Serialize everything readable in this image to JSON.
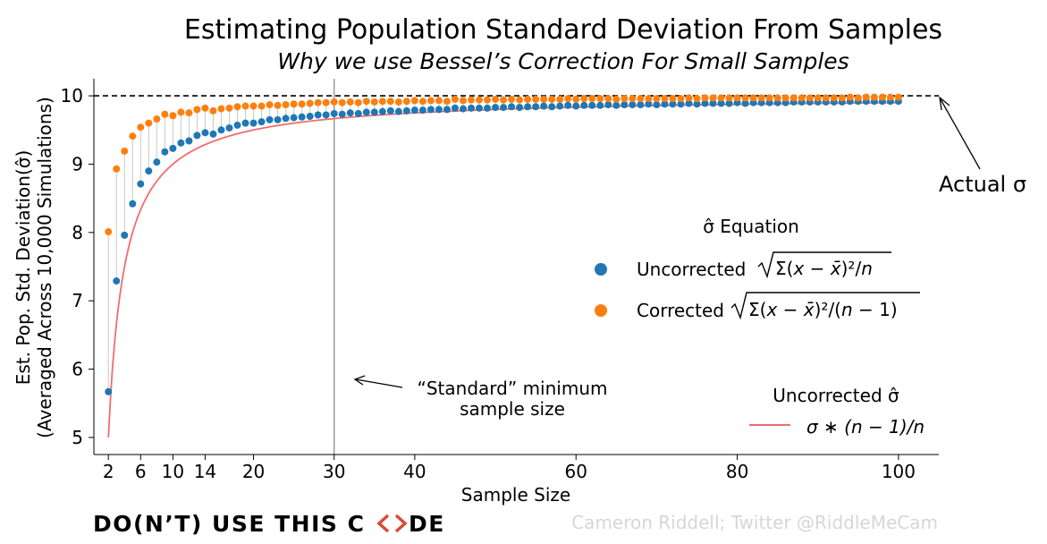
{
  "chart_data": {
    "type": "scatter",
    "title": "Estimating Population Standard Deviation From Samples",
    "subtitle": "Why we use Bessel’s Correction For Small Samples",
    "xlabel": "Sample Size",
    "ylabel_lines": [
      "Est. Pop. Std. Deviation(σ̂)",
      "(Averaged Across 10,000 Simulations)"
    ],
    "xlim": [
      0.2,
      105
    ],
    "ylim": [
      4.75,
      10.25
    ],
    "x_ticks": [
      2,
      6,
      10,
      14,
      20,
      30,
      40,
      60,
      80,
      100
    ],
    "y_ticks": [
      5,
      6,
      7,
      8,
      9,
      10
    ],
    "true_sigma": 10,
    "reference_x": 30,
    "legend": {
      "title": "σ̂ Equation",
      "uncorrected_label": "Uncorrected",
      "corrected_label": "Corrected",
      "curve_title": "Uncorrected σ̂",
      "curve_label": "σ * (n − 1)/n"
    },
    "series": [
      {
        "name": "Uncorrected",
        "color": "#1f77b4",
        "x": [
          2,
          3,
          4,
          5,
          6,
          7,
          8,
          9,
          10,
          11,
          12,
          13,
          14,
          15,
          16,
          17,
          18,
          19,
          20,
          21,
          22,
          23,
          24,
          25,
          26,
          27,
          28,
          29,
          30,
          31,
          32,
          33,
          34,
          35,
          36,
          37,
          38,
          39,
          40,
          41,
          42,
          43,
          44,
          45,
          46,
          47,
          48,
          49,
          50,
          51,
          52,
          53,
          54,
          55,
          56,
          57,
          58,
          59,
          60,
          61,
          62,
          63,
          64,
          65,
          66,
          67,
          68,
          69,
          70,
          71,
          72,
          73,
          74,
          75,
          76,
          77,
          78,
          79,
          80,
          81,
          82,
          83,
          84,
          85,
          86,
          87,
          88,
          89,
          90,
          91,
          92,
          93,
          94,
          95,
          96,
          97,
          98,
          99,
          100
        ],
        "values": [
          5.67,
          7.29,
          7.96,
          8.42,
          8.71,
          8.9,
          9.03,
          9.18,
          9.23,
          9.31,
          9.34,
          9.42,
          9.46,
          9.44,
          9.5,
          9.53,
          9.57,
          9.6,
          9.6,
          9.62,
          9.65,
          9.65,
          9.67,
          9.68,
          9.69,
          9.7,
          9.72,
          9.72,
          9.74,
          9.73,
          9.75,
          9.74,
          9.76,
          9.76,
          9.77,
          9.78,
          9.77,
          9.78,
          9.79,
          9.79,
          9.8,
          9.8,
          9.8,
          9.82,
          9.81,
          9.82,
          9.82,
          9.82,
          9.83,
          9.83,
          9.84,
          9.83,
          9.84,
          9.84,
          9.85,
          9.84,
          9.85,
          9.86,
          9.85,
          9.86,
          9.86,
          9.86,
          9.87,
          9.86,
          9.87,
          9.87,
          9.87,
          9.88,
          9.87,
          9.88,
          9.88,
          9.88,
          9.89,
          9.88,
          9.89,
          9.89,
          9.89,
          9.89,
          9.9,
          9.89,
          9.9,
          9.9,
          9.9,
          9.9,
          9.9,
          9.91,
          9.91,
          9.91,
          9.91,
          9.91,
          9.91,
          9.91,
          9.92,
          9.92,
          9.92,
          9.92,
          9.92,
          9.92,
          9.92
        ]
      },
      {
        "name": "Corrected",
        "color": "#ff7f0e",
        "x": [
          2,
          3,
          4,
          5,
          6,
          7,
          8,
          9,
          10,
          11,
          12,
          13,
          14,
          15,
          16,
          17,
          18,
          19,
          20,
          21,
          22,
          23,
          24,
          25,
          26,
          27,
          28,
          29,
          30,
          31,
          32,
          33,
          34,
          35,
          36,
          37,
          38,
          39,
          40,
          41,
          42,
          43,
          44,
          45,
          46,
          47,
          48,
          49,
          50,
          51,
          52,
          53,
          54,
          55,
          56,
          57,
          58,
          59,
          60,
          61,
          62,
          63,
          64,
          65,
          66,
          67,
          68,
          69,
          70,
          71,
          72,
          73,
          74,
          75,
          76,
          77,
          78,
          79,
          80,
          81,
          82,
          83,
          84,
          85,
          86,
          87,
          88,
          89,
          90,
          91,
          92,
          93,
          94,
          95,
          96,
          97,
          98,
          99,
          100
        ],
        "values": [
          8.01,
          8.93,
          9.19,
          9.41,
          9.54,
          9.6,
          9.66,
          9.73,
          9.71,
          9.76,
          9.75,
          9.8,
          9.82,
          9.78,
          9.81,
          9.82,
          9.84,
          9.85,
          9.85,
          9.85,
          9.87,
          9.86,
          9.87,
          9.88,
          9.88,
          9.89,
          9.9,
          9.9,
          9.91,
          9.9,
          9.91,
          9.9,
          9.92,
          9.91,
          9.92,
          9.92,
          9.91,
          9.92,
          9.93,
          9.92,
          9.93,
          9.93,
          9.92,
          9.95,
          9.93,
          9.94,
          9.94,
          9.94,
          9.95,
          9.94,
          9.95,
          9.94,
          9.95,
          9.95,
          9.95,
          9.95,
          9.95,
          9.96,
          9.95,
          9.96,
          9.96,
          9.96,
          9.96,
          9.95,
          9.96,
          9.96,
          9.96,
          9.96,
          9.96,
          9.96,
          9.96,
          9.96,
          9.97,
          9.96,
          9.97,
          9.97,
          9.97,
          9.97,
          9.97,
          9.97,
          9.97,
          9.97,
          9.97,
          9.97,
          9.97,
          9.97,
          9.97,
          9.97,
          9.97,
          9.97,
          9.97,
          9.97,
          9.98,
          9.97,
          9.98,
          9.98,
          9.98,
          9.98,
          9.98
        ]
      }
    ],
    "curve": {
      "color": "#f36b6b",
      "formula_sigma": 10
    },
    "annotations": {
      "actual_sigma": "Actual σ",
      "reference_line": [
        "“Standard” minimum",
        "sample size"
      ]
    }
  },
  "footer": {
    "brand": "DO(N’T) USE THIS C",
    "brand_end": "DE",
    "credit": "Cameron Riddell; Twitter @RiddleMeCam"
  },
  "colors": {
    "accent": "#d84a3a",
    "grid_line": "#c8c8c8",
    "reference_line": "#8c8c8c"
  }
}
